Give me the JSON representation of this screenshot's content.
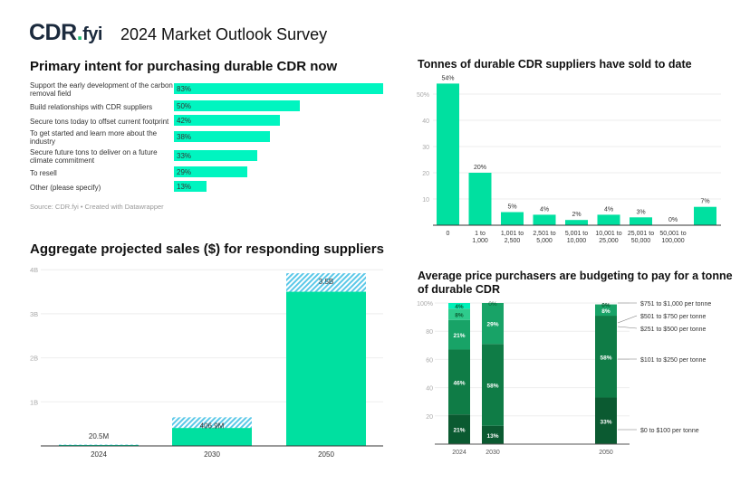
{
  "header": {
    "logo_text": "CDR.fyi",
    "logo_main": "CDR",
    "logo_dot": ".",
    "logo_suffix": "fyi",
    "title": "2024 Market Outlook Survey"
  },
  "colors": {
    "accent": "#00f5c0",
    "bar": "#00e0a0",
    "hatch": "#5bc8e8",
    "logo": "#1b2a3d",
    "logo_dot": "#1fb870"
  },
  "chart_data": [
    {
      "type": "bar",
      "orientation": "horizontal",
      "title": "Primary intent for purchasing durable CDR now",
      "categories": [
        "Support the early development of the carbon removal field",
        "Build relationships with CDR suppliers",
        "Secure tons today to offset current footprint",
        "To get started and learn more about the industry",
        "Secure future tons to deliver on a future climate commitment",
        "To resell",
        "Other (please specify)"
      ],
      "values": [
        83,
        50,
        42,
        38,
        33,
        29,
        13
      ],
      "labels": [
        "83%",
        "50%",
        "42%",
        "38%",
        "33%",
        "29%",
        "13%"
      ],
      "source": "Source: CDR.fyi • Created with Datawrapper"
    },
    {
      "type": "bar",
      "title": "Tonnes of durable CDR suppliers have sold to date",
      "categories": [
        "0",
        "1 to 1,000",
        "1,001 to 2,500",
        "2,501 to 5,000",
        "5,001 to 10,000",
        "10,001 to 25,000",
        "25,001 to 50,000",
        "50,001 to 100,000",
        ""
      ],
      "values": [
        54,
        20,
        5,
        4,
        2,
        4,
        3,
        0,
        7
      ],
      "labels": [
        "54%",
        "20%",
        "5%",
        "4%",
        "2%",
        "4%",
        "3%",
        "0%",
        "7%"
      ],
      "yticks": [
        "10",
        "20",
        "30",
        "40",
        "50%"
      ],
      "ylim": [
        0,
        55
      ],
      "grid": true
    },
    {
      "type": "bar",
      "title": "Aggregate projected sales ($) for responding suppliers",
      "categories": [
        "2024",
        "2030",
        "2050"
      ],
      "values": [
        0.0205,
        0.4069,
        3.5
      ],
      "hatched_upper": [
        0.03,
        0.65,
        3.92
      ],
      "labels": [
        "20.5M",
        "406.9M",
        "3.5B"
      ],
      "yticks": [
        "1B",
        "2B",
        "3B",
        "4B"
      ],
      "ylim": [
        0,
        4
      ],
      "grid": true
    },
    {
      "type": "bar",
      "stacked": true,
      "title": "Average price purchasers are budgeting to pay for a tonne of durable CDR",
      "categories": [
        "2024",
        "2030",
        "2050"
      ],
      "series": [
        {
          "name": "$0 to $100 per tonne",
          "values": [
            21,
            13,
            33
          ],
          "color": "#0b5a31"
        },
        {
          "name": "$101 to $250 per tonne",
          "values": [
            46,
            58,
            58
          ],
          "color": "#0f7c46"
        },
        {
          "name": "$251 to $500 per tonne",
          "values": [
            21,
            29,
            8
          ],
          "color": "#18a367"
        },
        {
          "name": "$501 to $750 per tonne",
          "values": [
            8,
            0,
            0
          ],
          "color": "#2ecb8c"
        },
        {
          "name": "$751 to $1,000 per tonne",
          "values": [
            4,
            0,
            0
          ],
          "color": "#00f0b8"
        }
      ],
      "segment_labels": [
        [
          "21%",
          "46%",
          "21%",
          "8%",
          "4%"
        ],
        [
          "13%",
          "58%",
          "29%",
          "",
          ""
        ],
        [
          "33%",
          "58%",
          "8%",
          "",
          "0%"
        ]
      ],
      "top_labels": [
        "",
        "0%",
        ""
      ],
      "yticks": [
        "20",
        "40",
        "60",
        "80",
        "100%"
      ],
      "ylim": [
        0,
        100
      ],
      "grid": true
    }
  ]
}
